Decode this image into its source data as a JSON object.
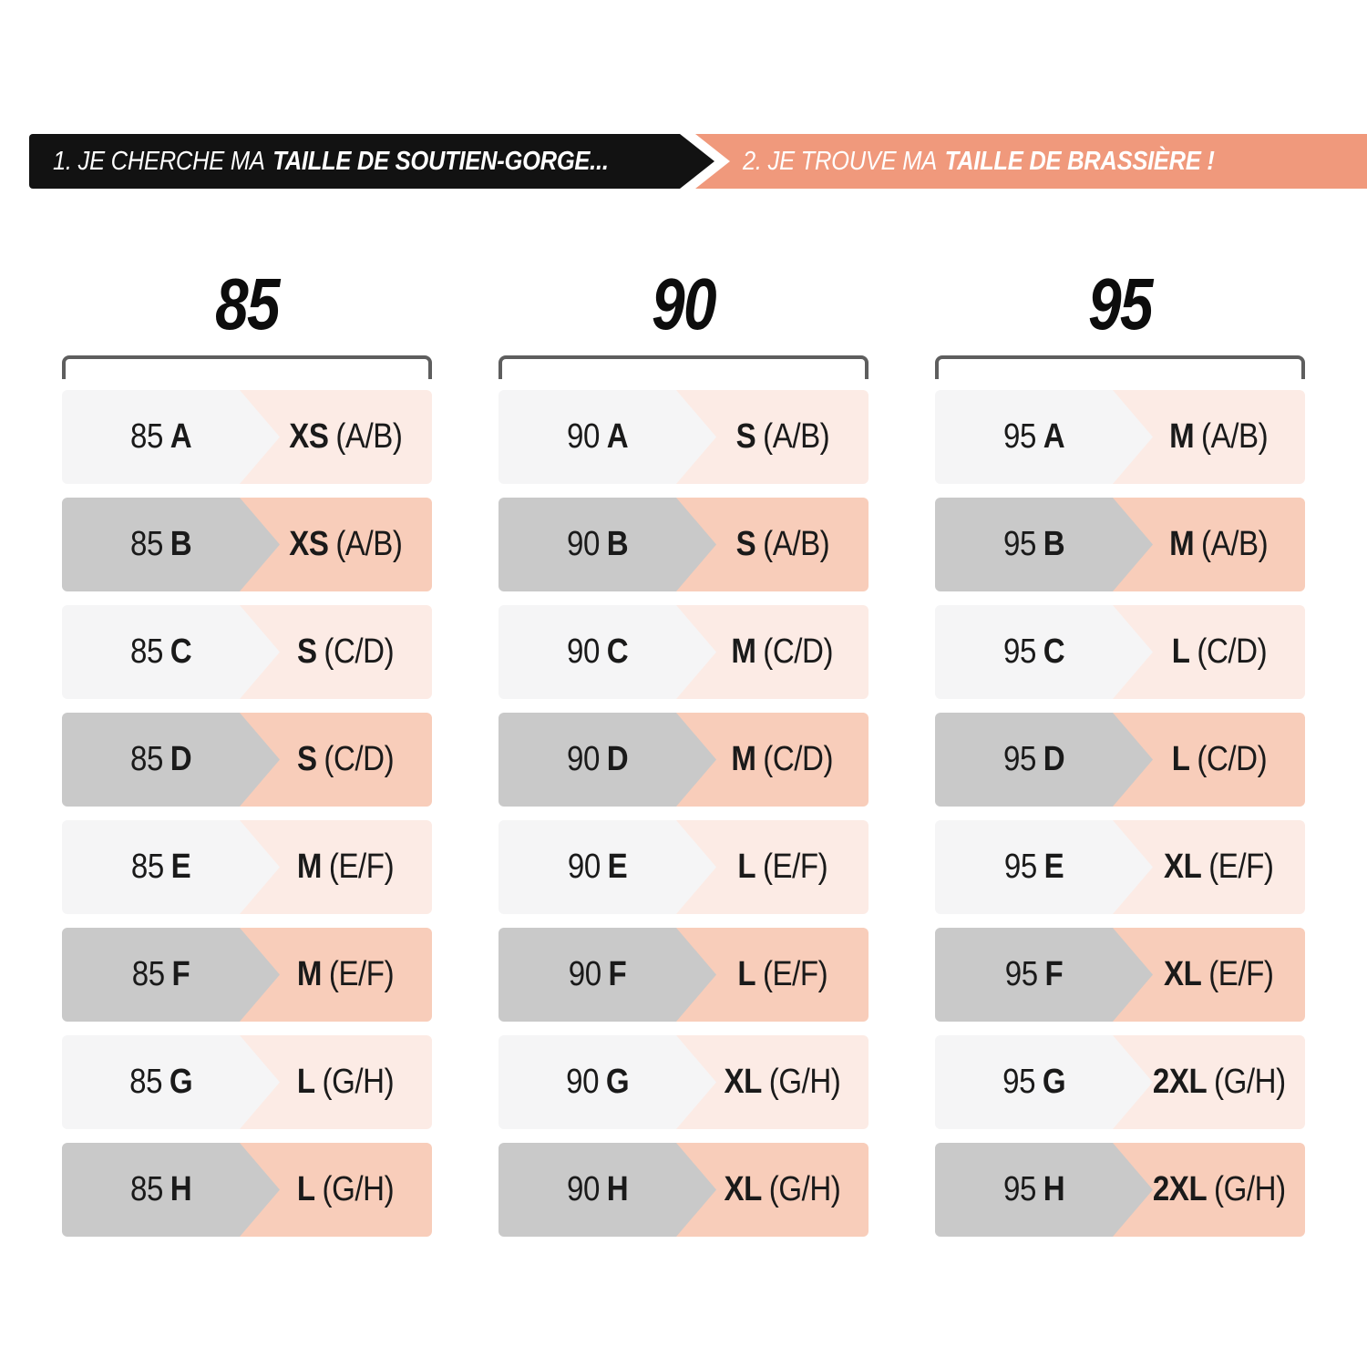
{
  "banners": {
    "step1": {
      "prefix": "1. JE CHERCHE MA",
      "bold": "TAILLE DE SOUTIEN-GORGE..."
    },
    "step2": {
      "prefix": "2. JE TROUVE MA",
      "bold": "TAILLE DE BRASSIÈRE !"
    }
  },
  "colors": {
    "banner_black": "#121212",
    "banner_orange": "#f0997c",
    "row_gray_light": "#f5f5f6",
    "row_pink_light": "#fcebe5",
    "row_gray_dark": "#c9c9c9",
    "row_pink_dark": "#f8cdba",
    "bracket_gray": "#5e5e5e",
    "text_dark": "#1a1a1a",
    "banner_text": "#ffffff"
  },
  "chart_data": {
    "type": "table",
    "title": "Correspondance taille de soutien-gorge / taille de brassière",
    "columns": [
      {
        "band": "85",
        "rows": [
          {
            "bra_band": "85",
            "bra_cup": "A",
            "bralette_size": "XS",
            "bralette_cups": "(A/B)",
            "highlighted": false
          },
          {
            "bra_band": "85",
            "bra_cup": "B",
            "bralette_size": "XS",
            "bralette_cups": "(A/B)",
            "highlighted": true
          },
          {
            "bra_band": "85",
            "bra_cup": "C",
            "bralette_size": "S",
            "bralette_cups": "(C/D)",
            "highlighted": false
          },
          {
            "bra_band": "85",
            "bra_cup": "D",
            "bralette_size": "S",
            "bralette_cups": "(C/D)",
            "highlighted": true
          },
          {
            "bra_band": "85",
            "bra_cup": "E",
            "bralette_size": "M",
            "bralette_cups": "(E/F)",
            "highlighted": false
          },
          {
            "bra_band": "85",
            "bra_cup": "F",
            "bralette_size": "M",
            "bralette_cups": "(E/F)",
            "highlighted": true
          },
          {
            "bra_band": "85",
            "bra_cup": "G",
            "bralette_size": "L",
            "bralette_cups": "(G/H)",
            "highlighted": false
          },
          {
            "bra_band": "85",
            "bra_cup": "H",
            "bralette_size": "L",
            "bralette_cups": "(G/H)",
            "highlighted": true
          }
        ]
      },
      {
        "band": "90",
        "rows": [
          {
            "bra_band": "90",
            "bra_cup": "A",
            "bralette_size": "S",
            "bralette_cups": "(A/B)",
            "highlighted": false
          },
          {
            "bra_band": "90",
            "bra_cup": "B",
            "bralette_size": "S",
            "bralette_cups": "(A/B)",
            "highlighted": true
          },
          {
            "bra_band": "90",
            "bra_cup": "C",
            "bralette_size": "M",
            "bralette_cups": "(C/D)",
            "highlighted": false
          },
          {
            "bra_band": "90",
            "bra_cup": "D",
            "bralette_size": "M",
            "bralette_cups": "(C/D)",
            "highlighted": true
          },
          {
            "bra_band": "90",
            "bra_cup": "E",
            "bralette_size": "L",
            "bralette_cups": "(E/F)",
            "highlighted": false
          },
          {
            "bra_band": "90",
            "bra_cup": "F",
            "bralette_size": "L",
            "bralette_cups": "(E/F)",
            "highlighted": true
          },
          {
            "bra_band": "90",
            "bra_cup": "G",
            "bralette_size": "XL",
            "bralette_cups": "(G/H)",
            "highlighted": false
          },
          {
            "bra_band": "90",
            "bra_cup": "H",
            "bralette_size": "XL",
            "bralette_cups": "(G/H)",
            "highlighted": true
          }
        ]
      },
      {
        "band": "95",
        "rows": [
          {
            "bra_band": "95",
            "bra_cup": "A",
            "bralette_size": "M",
            "bralette_cups": "(A/B)",
            "highlighted": false
          },
          {
            "bra_band": "95",
            "bra_cup": "B",
            "bralette_size": "M",
            "bralette_cups": "(A/B)",
            "highlighted": true
          },
          {
            "bra_band": "95",
            "bra_cup": "C",
            "bralette_size": "L",
            "bralette_cups": "(C/D)",
            "highlighted": false
          },
          {
            "bra_band": "95",
            "bra_cup": "D",
            "bralette_size": "L",
            "bralette_cups": "(C/D)",
            "highlighted": true
          },
          {
            "bra_band": "95",
            "bra_cup": "E",
            "bralette_size": "XL",
            "bralette_cups": "(E/F)",
            "highlighted": false
          },
          {
            "bra_band": "95",
            "bra_cup": "F",
            "bralette_size": "XL",
            "bralette_cups": "(E/F)",
            "highlighted": true
          },
          {
            "bra_band": "95",
            "bra_cup": "G",
            "bralette_size": "2XL",
            "bralette_cups": "(G/H)",
            "highlighted": false
          },
          {
            "bra_band": "95",
            "bra_cup": "H",
            "bralette_size": "2XL",
            "bralette_cups": "(G/H)",
            "highlighted": true
          }
        ]
      }
    ]
  }
}
